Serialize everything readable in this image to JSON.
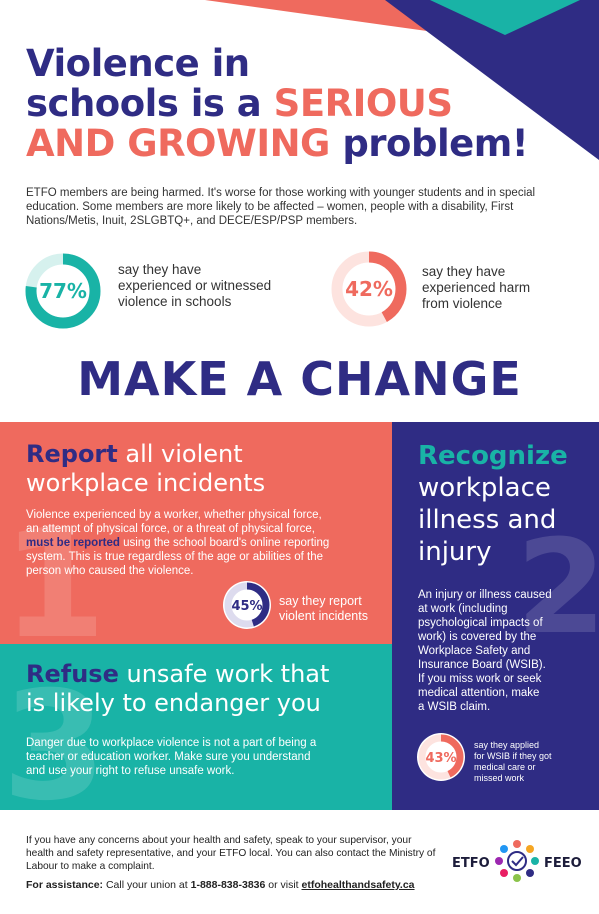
{
  "title": {
    "line1": "Violence in",
    "line2a": "schools is a ",
    "line2b": "SERIOUS",
    "line3a": "AND GROWING",
    "line3b": " problem!"
  },
  "intro": "ETFO members are being harmed. It's worse for those working with younger students and in special education. Some members are more likely to be affected – women, people with a disability, First Nations/Metis, Inuit, 2SLGBTQ+, and DECE/ESP/PSP members.",
  "stats": [
    {
      "value": "77%",
      "fraction": 0.77,
      "text_line1": "say they have",
      "text_line2": "experienced or witnessed",
      "text_line3": "violence in schools",
      "color": "#19b3a6"
    },
    {
      "value": "42%",
      "fraction": 0.42,
      "text_line1": "say they have",
      "text_line2": "experienced harm",
      "text_line3": "from violence",
      "color": "#ef6a5e"
    }
  ],
  "make_change": "MAKE A CHANGE",
  "report": {
    "title_bold": "Report",
    "title_rest1": " all violent",
    "title_line2": "workplace incidents",
    "body1": "Violence experienced by a worker, whether physical force,",
    "body2": "an attempt of physical force, or a threat of physical force,",
    "body3_hl": "must be reported",
    "body3_rest": " using the school board's online reporting",
    "body4": "system. This is true regardless of the age or abilities of the",
    "body5": "person who caused the violence.",
    "stat_value": "45%",
    "stat_fraction": 0.45,
    "stat_line1": "say they report",
    "stat_line2": "violent incidents",
    "number": "1",
    "color": "#ef6a5e"
  },
  "recognize": {
    "title_bold": "Recognize",
    "title_line2": "workplace",
    "title_line3": "illness and",
    "title_line4": "injury",
    "body": [
      "An injury or illness caused",
      "at work (including",
      "psychological impacts of",
      "work) is covered by the",
      "Workplace Safety and",
      "Insurance Board (WSIB).",
      "If you miss work or seek",
      "medical attention, make",
      "a WSIB claim."
    ],
    "stat_value": "43%",
    "stat_fraction": 0.43,
    "stat_line1": "say they applied",
    "stat_line2": "for WSIB if they got",
    "stat_line3": "medical care or",
    "stat_line4": "missed work",
    "number": "2",
    "color": "#2f2c84"
  },
  "refuse": {
    "title_bold": "Refuse",
    "title_rest1": " unsafe work that",
    "title_line2": "is likely to endanger you",
    "body1": "Danger due to workplace violence is not a part of being a",
    "body2": "teacher or education worker. Make sure you understand",
    "body3": "and use your right to refuse unsafe work.",
    "number": "3",
    "color": "#19b3a6"
  },
  "footer": {
    "line1": "If you have any concerns about your health and safety, speak to your supervisor, your",
    "line2": "health and safety representative, and your ETFO local. You can also contact the Ministry of",
    "line3": "Labour to make a complaint.",
    "assist_label": "For assistance:",
    "assist_text1": " Call your union at ",
    "assist_phone": "1-888-838-3836",
    "assist_text2": " or visit ",
    "assist_url": "etfohealthandsafety.ca"
  },
  "logo": {
    "left": "ETFO",
    "right": "FEEO"
  }
}
